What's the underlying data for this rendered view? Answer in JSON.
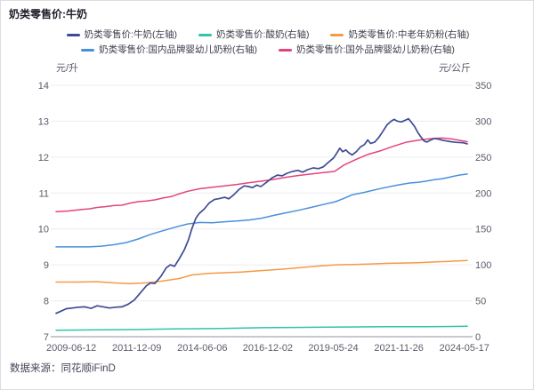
{
  "header": {
    "title": "奶类零售价:牛奶"
  },
  "footer": {
    "source": "数据来源：同花顺iFinD"
  },
  "chart_data": {
    "type": "line",
    "title": "奶类零售价:牛奶",
    "grid": true,
    "legend_position": "top",
    "left_axis": {
      "unit": "元/升",
      "min": 7,
      "max": 14,
      "ticks": [
        14,
        13,
        12,
        11,
        10,
        9,
        8,
        7
      ]
    },
    "right_axis": {
      "unit": "元/公斤",
      "min": 0,
      "max": 350,
      "ticks": [
        350,
        300,
        250,
        200,
        150,
        100,
        50,
        0
      ]
    },
    "x_labels": [
      "2009-06-12",
      "2011-12-09",
      "2014-06-06",
      "2016-12-02",
      "2019-05-24",
      "2021-11-26",
      "2024-05-17"
    ],
    "legend_rows": [
      [
        0,
        1,
        2
      ],
      [
        3,
        4
      ]
    ],
    "series": [
      {
        "name": "奶类零售价:牛奶(左轴)",
        "axis": "left",
        "color": "#3e4b94",
        "points": [
          [
            0,
            7.65
          ],
          [
            0.01,
            7.7
          ],
          [
            0.025,
            7.78
          ],
          [
            0.04,
            7.8
          ],
          [
            0.055,
            7.82
          ],
          [
            0.07,
            7.83
          ],
          [
            0.085,
            7.79
          ],
          [
            0.1,
            7.86
          ],
          [
            0.115,
            7.83
          ],
          [
            0.13,
            7.8
          ],
          [
            0.145,
            7.82
          ],
          [
            0.16,
            7.83
          ],
          [
            0.175,
            7.9
          ],
          [
            0.19,
            8.02
          ],
          [
            0.205,
            8.22
          ],
          [
            0.22,
            8.42
          ],
          [
            0.23,
            8.5
          ],
          [
            0.24,
            8.48
          ],
          [
            0.255,
            8.68
          ],
          [
            0.268,
            8.92
          ],
          [
            0.278,
            9.0
          ],
          [
            0.288,
            8.96
          ],
          [
            0.3,
            9.18
          ],
          [
            0.312,
            9.42
          ],
          [
            0.322,
            9.7
          ],
          [
            0.33,
            10.0
          ],
          [
            0.34,
            10.3
          ],
          [
            0.348,
            10.43
          ],
          [
            0.36,
            10.55
          ],
          [
            0.372,
            10.72
          ],
          [
            0.385,
            10.82
          ],
          [
            0.398,
            10.85
          ],
          [
            0.41,
            10.88
          ],
          [
            0.42,
            10.84
          ],
          [
            0.432,
            10.95
          ],
          [
            0.445,
            11.1
          ],
          [
            0.458,
            11.2
          ],
          [
            0.468,
            11.18
          ],
          [
            0.478,
            11.15
          ],
          [
            0.488,
            11.22
          ],
          [
            0.498,
            11.18
          ],
          [
            0.512,
            11.3
          ],
          [
            0.525,
            11.42
          ],
          [
            0.538,
            11.5
          ],
          [
            0.55,
            11.48
          ],
          [
            0.562,
            11.55
          ],
          [
            0.575,
            11.6
          ],
          [
            0.588,
            11.63
          ],
          [
            0.6,
            11.58
          ],
          [
            0.612,
            11.65
          ],
          [
            0.625,
            11.7
          ],
          [
            0.638,
            11.68
          ],
          [
            0.65,
            11.73
          ],
          [
            0.662,
            11.85
          ],
          [
            0.675,
            11.98
          ],
          [
            0.682,
            12.1
          ],
          [
            0.69,
            12.25
          ],
          [
            0.697,
            12.15
          ],
          [
            0.705,
            12.2
          ],
          [
            0.712,
            12.12
          ],
          [
            0.72,
            12.06
          ],
          [
            0.73,
            12.15
          ],
          [
            0.74,
            12.28
          ],
          [
            0.75,
            12.35
          ],
          [
            0.758,
            12.48
          ],
          [
            0.765,
            12.38
          ],
          [
            0.775,
            12.42
          ],
          [
            0.785,
            12.55
          ],
          [
            0.795,
            12.72
          ],
          [
            0.805,
            12.9
          ],
          [
            0.815,
            13.0
          ],
          [
            0.822,
            13.05
          ],
          [
            0.83,
            13.0
          ],
          [
            0.84,
            12.98
          ],
          [
            0.85,
            13.03
          ],
          [
            0.857,
            13.07
          ],
          [
            0.864,
            12.97
          ],
          [
            0.872,
            12.85
          ],
          [
            0.88,
            12.68
          ],
          [
            0.888,
            12.55
          ],
          [
            0.895,
            12.45
          ],
          [
            0.902,
            12.42
          ],
          [
            0.91,
            12.47
          ],
          [
            0.92,
            12.52
          ],
          [
            0.93,
            12.5
          ],
          [
            0.94,
            12.47
          ],
          [
            0.95,
            12.45
          ],
          [
            0.96,
            12.43
          ],
          [
            0.975,
            12.41
          ],
          [
            0.99,
            12.4
          ],
          [
            1,
            12.37
          ]
        ]
      },
      {
        "name": "奶类零售价:酸奶(右轴)",
        "axis": "right",
        "color": "#30c5a8",
        "points": [
          [
            0,
            9
          ],
          [
            0.1,
            9.5
          ],
          [
            0.2,
            10
          ],
          [
            0.3,
            11
          ],
          [
            0.4,
            11.5
          ],
          [
            0.5,
            12.5
          ],
          [
            0.6,
            13
          ],
          [
            0.7,
            13.5
          ],
          [
            0.8,
            14
          ],
          [
            0.9,
            14
          ],
          [
            1,
            14.5
          ]
        ]
      },
      {
        "name": "奶类零售价:中老年奶粉(右轴)",
        "axis": "right",
        "color": "#f59a45",
        "points": [
          [
            0,
            76
          ],
          [
            0.05,
            76
          ],
          [
            0.1,
            76.5
          ],
          [
            0.14,
            75
          ],
          [
            0.18,
            74
          ],
          [
            0.22,
            75
          ],
          [
            0.26,
            77.5
          ],
          [
            0.3,
            81
          ],
          [
            0.33,
            86
          ],
          [
            0.37,
            88
          ],
          [
            0.41,
            89
          ],
          [
            0.45,
            90
          ],
          [
            0.5,
            92
          ],
          [
            0.55,
            94
          ],
          [
            0.6,
            96.5
          ],
          [
            0.64,
            98.5
          ],
          [
            0.68,
            100
          ],
          [
            0.72,
            100.5
          ],
          [
            0.76,
            101
          ],
          [
            0.8,
            102
          ],
          [
            0.84,
            102.5
          ],
          [
            0.88,
            103
          ],
          [
            0.92,
            104
          ],
          [
            0.96,
            105
          ],
          [
            1,
            106
          ]
        ]
      },
      {
        "name": "奶类零售价:国内品牌婴幼儿奶粉(右轴)",
        "axis": "right",
        "color": "#4a90d9",
        "points": [
          [
            0,
            125
          ],
          [
            0.04,
            125
          ],
          [
            0.08,
            125
          ],
          [
            0.11,
            126
          ],
          [
            0.14,
            128
          ],
          [
            0.17,
            131
          ],
          [
            0.2,
            136
          ],
          [
            0.23,
            142.5
          ],
          [
            0.26,
            147.5
          ],
          [
            0.29,
            152.5
          ],
          [
            0.32,
            157
          ],
          [
            0.35,
            159
          ],
          [
            0.38,
            158.5
          ],
          [
            0.41,
            160
          ],
          [
            0.44,
            161
          ],
          [
            0.47,
            162.5
          ],
          [
            0.5,
            165
          ],
          [
            0.53,
            169
          ],
          [
            0.56,
            172.5
          ],
          [
            0.59,
            176
          ],
          [
            0.62,
            180
          ],
          [
            0.65,
            184
          ],
          [
            0.68,
            188
          ],
          [
            0.7,
            192.5
          ],
          [
            0.72,
            197.5
          ],
          [
            0.75,
            201
          ],
          [
            0.78,
            205
          ],
          [
            0.8,
            207.5
          ],
          [
            0.83,
            211
          ],
          [
            0.86,
            214
          ],
          [
            0.88,
            215
          ],
          [
            0.9,
            216.5
          ],
          [
            0.92,
            218.5
          ],
          [
            0.94,
            220
          ],
          [
            0.96,
            222.5
          ],
          [
            0.98,
            225
          ],
          [
            1,
            226.5
          ]
        ]
      },
      {
        "name": "奶类零售价:国外品牌婴幼儿奶粉(右轴)",
        "axis": "right",
        "color": "#e5437f",
        "points": [
          [
            0,
            174
          ],
          [
            0.03,
            175
          ],
          [
            0.06,
            177
          ],
          [
            0.08,
            178
          ],
          [
            0.1,
            180
          ],
          [
            0.12,
            181
          ],
          [
            0.14,
            182.5
          ],
          [
            0.16,
            183
          ],
          [
            0.18,
            186
          ],
          [
            0.2,
            188
          ],
          [
            0.22,
            189
          ],
          [
            0.24,
            190.5
          ],
          [
            0.26,
            193
          ],
          [
            0.28,
            195
          ],
          [
            0.3,
            199
          ],
          [
            0.32,
            202.5
          ],
          [
            0.35,
            206
          ],
          [
            0.38,
            208
          ],
          [
            0.41,
            210
          ],
          [
            0.44,
            212
          ],
          [
            0.47,
            214.5
          ],
          [
            0.5,
            216.5
          ],
          [
            0.53,
            219
          ],
          [
            0.56,
            222
          ],
          [
            0.59,
            224.5
          ],
          [
            0.62,
            226.5
          ],
          [
            0.65,
            228.5
          ],
          [
            0.677,
            230
          ],
          [
            0.69,
            235
          ],
          [
            0.7,
            239
          ],
          [
            0.73,
            247
          ],
          [
            0.76,
            254
          ],
          [
            0.79,
            259
          ],
          [
            0.82,
            265
          ],
          [
            0.85,
            270.5
          ],
          [
            0.88,
            273.5
          ],
          [
            0.9,
            275
          ],
          [
            0.92,
            276
          ],
          [
            0.94,
            276.5
          ],
          [
            0.96,
            275.5
          ],
          [
            0.98,
            273.5
          ],
          [
            1,
            271.5
          ]
        ]
      }
    ],
    "colors": {
      "grid": "#ececf2",
      "axis_line": "#b5b5c0",
      "tick_text": "#5a5a6b",
      "title_text": "#1e1e2b"
    }
  }
}
